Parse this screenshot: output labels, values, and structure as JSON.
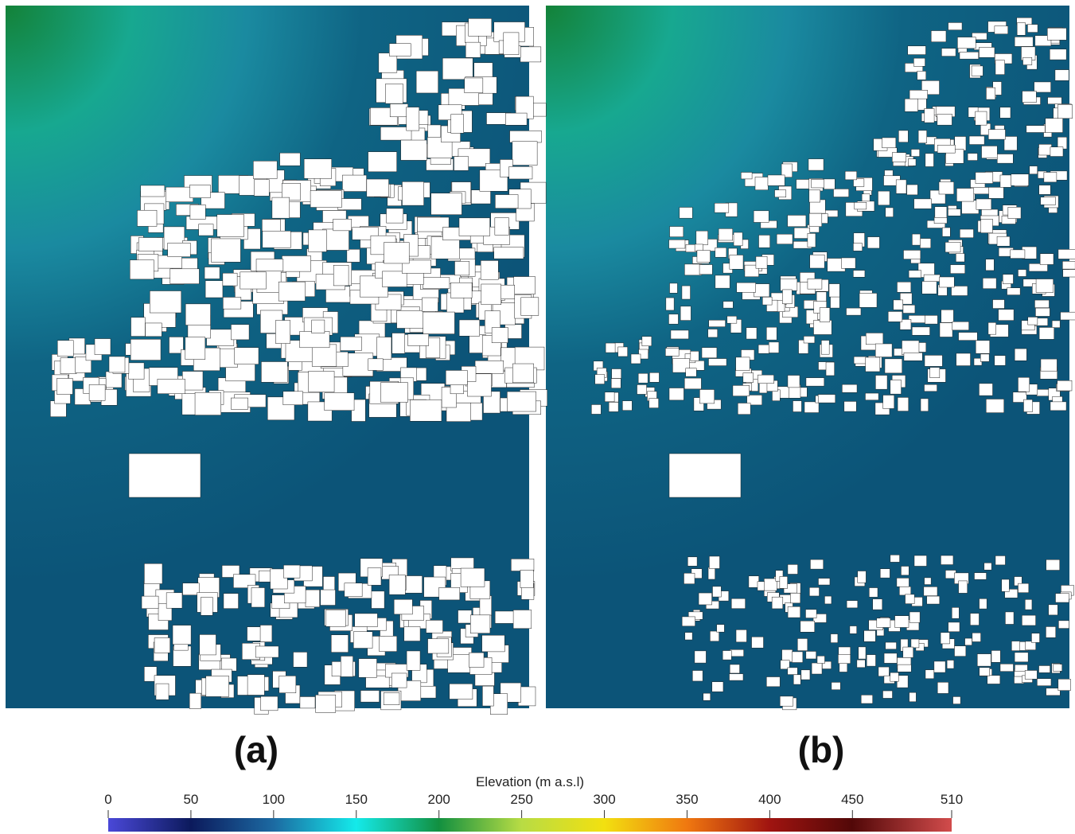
{
  "panels": [
    {
      "label": "(a)"
    },
    {
      "label": "(b)"
    }
  ],
  "colorbar": {
    "title": "Elevation (m a.s.l)",
    "range": [
      0,
      510
    ],
    "ticks": [
      0,
      50,
      100,
      150,
      200,
      250,
      300,
      350,
      400,
      450,
      510
    ]
  }
}
